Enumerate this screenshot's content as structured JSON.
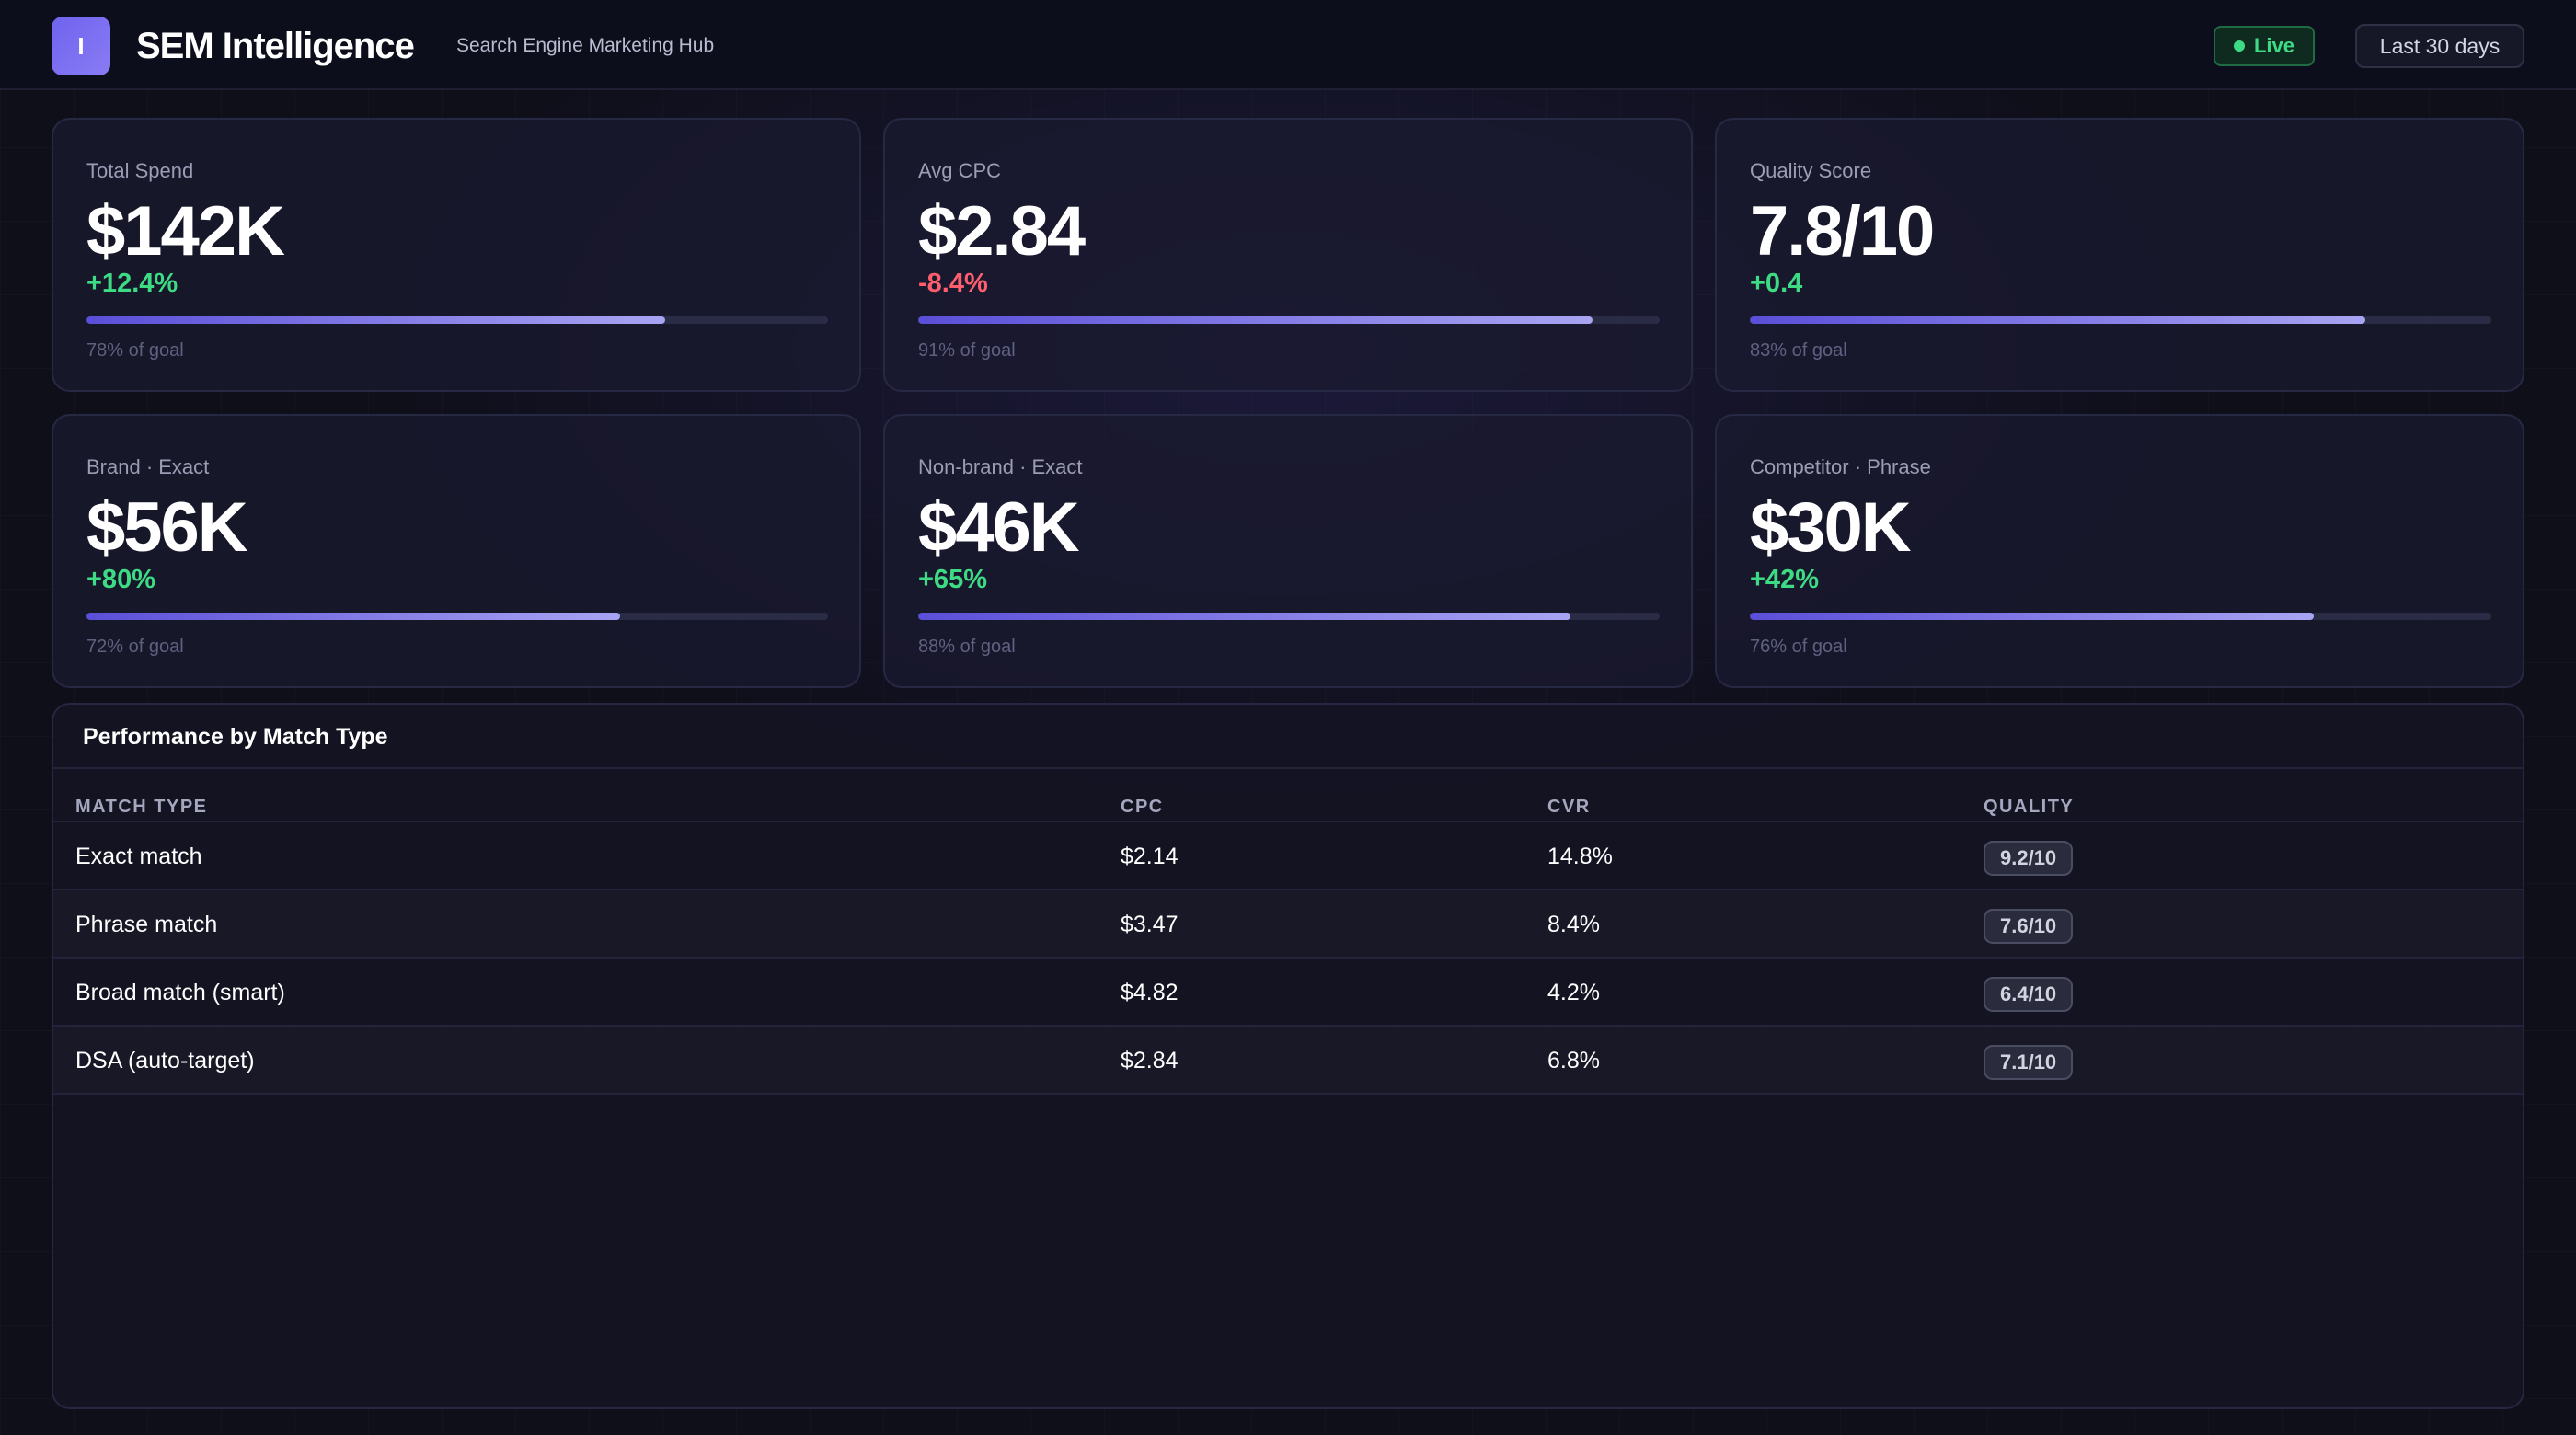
{
  "header": {
    "logo_letter": "I",
    "title": "SEM Intelligence",
    "subtitle": "Search Engine Marketing Hub",
    "live_label": "Live",
    "range_label": "Last 30 days"
  },
  "kpis": [
    {
      "label": "Total Spend",
      "value": "$142K",
      "delta": "+12.4%",
      "trend": "up",
      "goal_pct": 78,
      "goal_text": "78% of goal"
    },
    {
      "label": "Avg CPC",
      "value": "$2.84",
      "delta": "-8.4%",
      "trend": "down",
      "goal_pct": 91,
      "goal_text": "91% of goal"
    },
    {
      "label": "Quality Score",
      "value": "7.8/10",
      "delta": "+0.4",
      "trend": "up",
      "goal_pct": 83,
      "goal_text": "83% of goal"
    },
    {
      "label": "Brand · Exact",
      "value": "$56K",
      "delta": "+80%",
      "trend": "up",
      "goal_pct": 72,
      "goal_text": "72% of goal"
    },
    {
      "label": "Non-brand · Exact",
      "value": "$46K",
      "delta": "+65%",
      "trend": "up",
      "goal_pct": 88,
      "goal_text": "88% of goal"
    },
    {
      "label": "Competitor · Phrase",
      "value": "$30K",
      "delta": "+42%",
      "trend": "up",
      "goal_pct": 76,
      "goal_text": "76% of goal"
    }
  ],
  "table": {
    "title": "Performance by Match Type",
    "columns": [
      "MATCH TYPE",
      "CPC",
      "CVR",
      "QUALITY"
    ],
    "rows": [
      {
        "match_type": "Exact match",
        "cpc": "$2.14",
        "cvr": "14.8%",
        "quality": "9.2/10"
      },
      {
        "match_type": "Phrase match",
        "cpc": "$3.47",
        "cvr": "8.4%",
        "quality": "7.6/10"
      },
      {
        "match_type": "Broad match (smart)",
        "cpc": "$4.82",
        "cvr": "4.2%",
        "quality": "6.4/10"
      },
      {
        "match_type": "DSA (auto-target)",
        "cpc": "$2.84",
        "cvr": "6.8%",
        "quality": "7.1/10"
      }
    ]
  },
  "colors": {
    "accent": "#6f63ee",
    "positive": "#3ddc84",
    "negative": "#ff5f6d",
    "background": "#0f0f1a"
  }
}
